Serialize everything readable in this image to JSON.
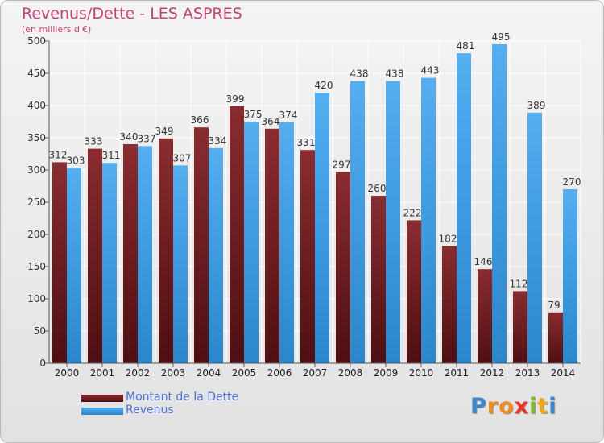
{
  "header": {
    "title": "Revenus/Dette - LES ASPRES",
    "subtitle": "(en milliers d'€)"
  },
  "colors": {
    "dette": "#7a1f24",
    "revenus": "#3d9be0",
    "title": "#c4407a",
    "legend_text": "#4d72d6",
    "grid": "#ffffff"
  },
  "chart_data": {
    "type": "bar",
    "title": "Revenus/Dette - LES ASPRES",
    "subtitle": "(en milliers d'€)",
    "categories": [
      "2000",
      "2001",
      "2002",
      "2003",
      "2004",
      "2005",
      "2006",
      "2007",
      "2008",
      "2009",
      "2010",
      "2011",
      "2012",
      "2013",
      "2014"
    ],
    "series": [
      {
        "name": "Montant de la Dette",
        "values": [
          312,
          333,
          340,
          349,
          366,
          399,
          364,
          331,
          297,
          260,
          222,
          182,
          146,
          112,
          79
        ]
      },
      {
        "name": "Revenus",
        "values": [
          303,
          311,
          337,
          307,
          334,
          375,
          374,
          420,
          438,
          438,
          443,
          481,
          495,
          389,
          270
        ]
      }
    ],
    "ylim": [
      0,
      500
    ],
    "yticks": [
      0,
      50,
      100,
      150,
      200,
      250,
      300,
      350,
      400,
      450,
      500
    ],
    "grid": true,
    "legend_position": "bottom-left",
    "data_labels": true
  },
  "legend": {
    "items": [
      {
        "label": "Montant de la Dette"
      },
      {
        "label": "Revenus"
      }
    ]
  },
  "brand": {
    "letters": [
      {
        "ch": "P",
        "color": "#3b86c8"
      },
      {
        "ch": "r",
        "color": "#f28a1c"
      },
      {
        "ch": "o",
        "color": "#f28a1c"
      },
      {
        "ch": "x",
        "color": "#e8352b"
      },
      {
        "ch": "i",
        "color": "#7dbb2c"
      },
      {
        "ch": "t",
        "color": "#f2a51c"
      },
      {
        "ch": "i",
        "color": "#3b86c8"
      }
    ]
  }
}
